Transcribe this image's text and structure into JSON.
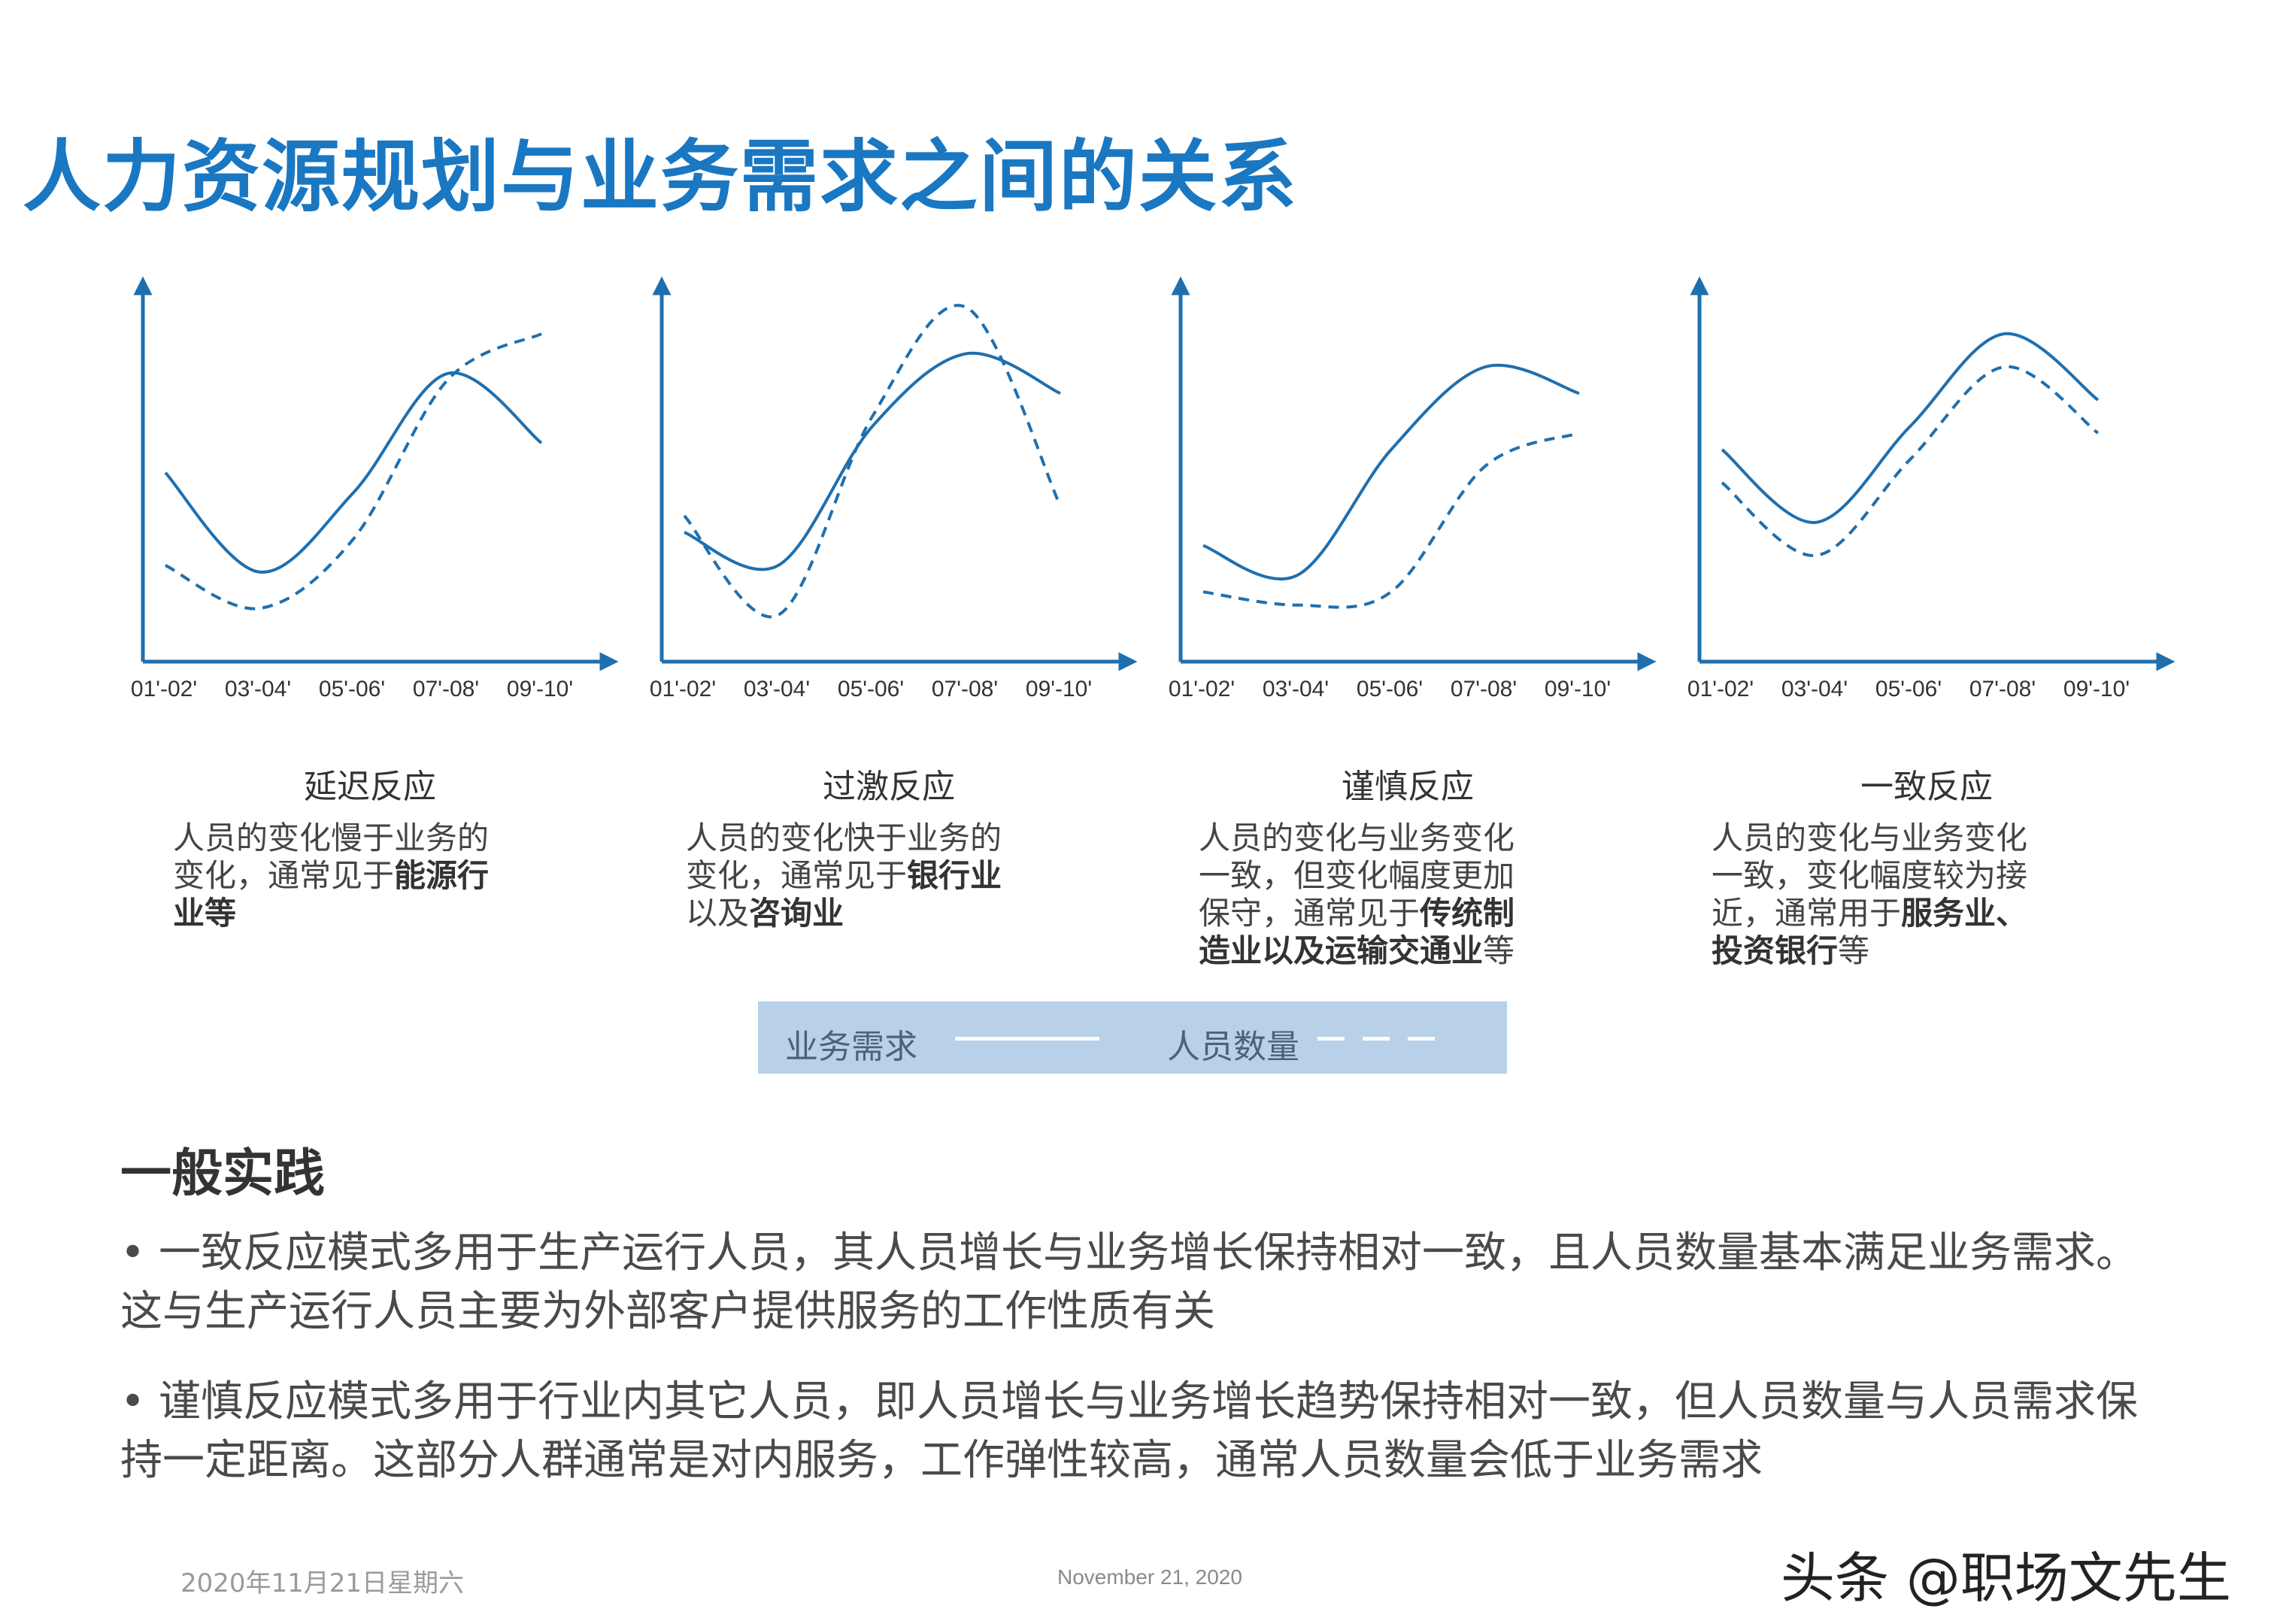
{
  "title": "人力资源规划与业务需求之间的关系",
  "charts": [
    {
      "name": "延迟反应",
      "desc": [
        "人员的变化慢于业务的",
        "变化，通常见于",
        "能源行",
        "业等"
      ]
    },
    {
      "name": "过激反应",
      "desc": [
        "人员的变化快于业务的",
        "变化，通常见于",
        "银行业",
        "以及",
        "咨询业"
      ]
    },
    {
      "name": "谨慎反应",
      "desc": [
        "人员的变化与业务变化",
        "一致，但变化幅度更加",
        "保守，通常见于",
        "传统制",
        "造业以及运输交通业",
        "等"
      ]
    },
    {
      "name": "一致反应",
      "desc": [
        "人员的变化与业务变化",
        "一致，变化幅度较为接",
        "近，通常用于",
        "服务业、",
        "投资银行",
        "等"
      ]
    }
  ],
  "legend": {
    "demand": "业务需求",
    "staff": "人员数量"
  },
  "section_title": "一般实践",
  "bullets": [
    "一致反应模式多用于生产运行人员，其人员增长与业务增长保持相对一致，且人员数量基本满足业务需求。这与生产运行人员主要为外部客户提供服务的工作性质有关",
    "谨慎反应模式多用于行业内其它人员，即人员增长与业务增长趋势保持相对一致，但人员数量与人员需求保持一定距离。这部分人群通常是对内服务，工作弹性较高，通常人员数量会低于业务需求"
  ],
  "footer": {
    "date_cn": "2020年11月21日星期六",
    "date_en": "November 21, 2020"
  },
  "watermark": "头条 @职场文先生",
  "colors": {
    "title": "#1a77c2",
    "line": "#1f6fae",
    "legend_bg": "#b8d1e9"
  },
  "chart_data": [
    {
      "type": "line",
      "title": "延迟反应",
      "categories": [
        "01'-02'",
        "03'-04'",
        "05'-06'",
        "07'-08'",
        "09'-10'"
      ],
      "series": [
        {
          "name": "业务需求",
          "values": [
            0.48,
            0.18,
            0.42,
            0.78,
            0.57
          ]
        },
        {
          "name": "人员数量",
          "values": [
            0.2,
            0.07,
            0.28,
            0.76,
            0.9
          ]
        }
      ],
      "ylim": [
        0,
        1
      ],
      "grid": false
    },
    {
      "type": "line",
      "title": "过激反应",
      "categories": [
        "01'-02'",
        "03'-04'",
        "05'-06'",
        "07'-08'",
        "09'-10'"
      ],
      "series": [
        {
          "name": "业务需求",
          "values": [
            0.3,
            0.2,
            0.62,
            0.84,
            0.72
          ]
        },
        {
          "name": "人员数量",
          "values": [
            0.35,
            0.05,
            0.65,
            0.98,
            0.38
          ]
        }
      ],
      "ylim": [
        0,
        1
      ],
      "grid": false
    },
    {
      "type": "line",
      "title": "谨慎反应",
      "categories": [
        "01'-02'",
        "03'-04'",
        "05'-06'",
        "07'-08'",
        "09'-10'"
      ],
      "series": [
        {
          "name": "业务需求",
          "values": [
            0.26,
            0.17,
            0.55,
            0.8,
            0.72
          ]
        },
        {
          "name": "人员数量",
          "values": [
            0.12,
            0.08,
            0.12,
            0.5,
            0.6
          ]
        }
      ],
      "ylim": [
        0,
        1
      ],
      "grid": false
    },
    {
      "type": "line",
      "title": "一致反应",
      "categories": [
        "01'-02'",
        "03'-04'",
        "05'-06'",
        "07'-08'",
        "09'-10'"
      ],
      "series": [
        {
          "name": "业务需求",
          "values": [
            0.55,
            0.33,
            0.62,
            0.9,
            0.7
          ]
        },
        {
          "name": "人员数量",
          "values": [
            0.45,
            0.23,
            0.52,
            0.8,
            0.6
          ]
        }
      ],
      "ylim": [
        0,
        1
      ],
      "grid": false
    }
  ]
}
